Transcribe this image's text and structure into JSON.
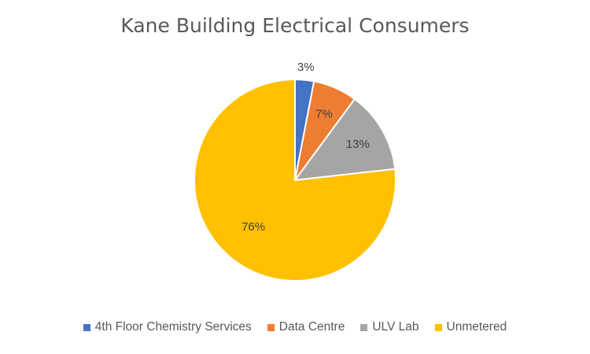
{
  "chart_data": {
    "type": "pie",
    "title": "Kane Building Electrical Consumers",
    "categories": [
      "4th Floor Chemistry Services",
      "Data Centre",
      "ULV Lab",
      "Unmetered"
    ],
    "values": [
      3,
      7,
      13,
      76
    ],
    "labels": [
      "3%",
      "7%",
      "13%",
      "76%"
    ],
    "colors": [
      "#4472C4",
      "#ED7D31",
      "#A5A5A5",
      "#FFC000"
    ],
    "legend": "bottom"
  }
}
